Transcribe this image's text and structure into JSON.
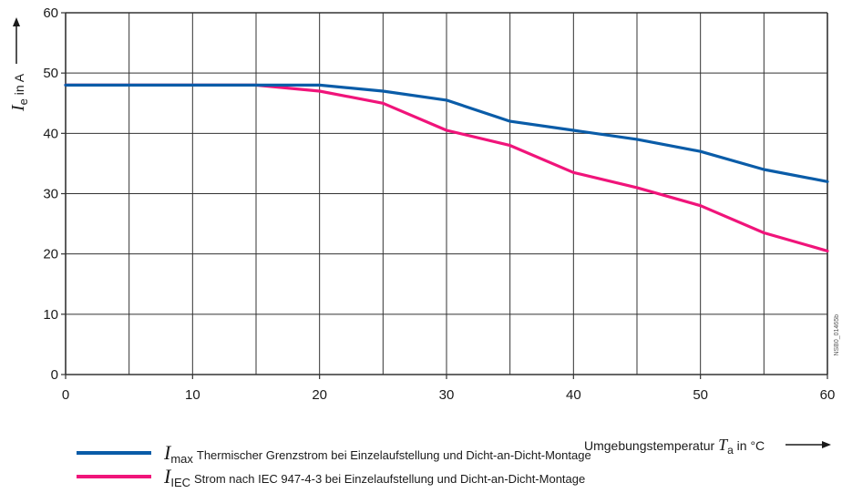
{
  "chart_data": {
    "type": "line",
    "x": [
      0,
      5,
      10,
      15,
      20,
      25,
      30,
      35,
      40,
      45,
      50,
      55,
      60
    ],
    "xlim": [
      0,
      60
    ],
    "ylim": [
      0,
      60
    ],
    "x_ticks": [
      0,
      10,
      20,
      30,
      40,
      50,
      60
    ],
    "y_ticks": [
      0,
      10,
      20,
      30,
      40,
      50,
      60
    ],
    "x_tick_labels": [
      "0",
      "10",
      "20",
      "30",
      "40",
      "50",
      "60"
    ],
    "y_tick_labels": [
      "0",
      "10",
      "20",
      "30",
      "40",
      "50",
      "60"
    ],
    "grid": true,
    "xlabel": {
      "prefix": "Umgebungstemperatur ",
      "symbol": "T",
      "sub": "a",
      "suffix": " in °C"
    },
    "ylabel": {
      "symbol": "I",
      "sub": "e",
      "suffix": " in A"
    },
    "series": [
      {
        "name": "Thermischer Grenzstrom bei Einzelaufstellung und Dicht-an-Dicht-Montage",
        "symbol": "I",
        "sub": "max",
        "color": "#0a5ca8",
        "values": [
          48,
          48,
          48,
          48,
          48,
          47,
          45.5,
          42,
          40.5,
          39,
          37,
          34,
          32
        ]
      },
      {
        "name": "Strom nach IEC 947-4-3 bei Einzelaufstellung und Dicht-an-Dicht-Montage",
        "symbol": "I",
        "sub": "IEC",
        "color": "#f0147a",
        "values": [
          48,
          48,
          48,
          48,
          47,
          45,
          40.5,
          38,
          33.5,
          31,
          28,
          23.5,
          20.5
        ]
      }
    ],
    "side_code": "NSB0_01465b"
  }
}
